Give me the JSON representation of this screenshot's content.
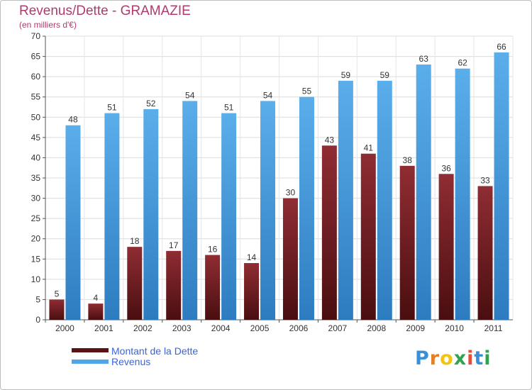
{
  "chart_data": {
    "type": "bar",
    "title": "Revenus/Dette - GRAMAZIE",
    "subtitle": "(en milliers d'€)",
    "categories": [
      "2000",
      "2001",
      "2002",
      "2003",
      "2004",
      "2005",
      "2006",
      "2007",
      "2008",
      "2009",
      "2010",
      "2011"
    ],
    "series": [
      {
        "name": "Montant de la Dette",
        "values": [
          5,
          4,
          18,
          17,
          16,
          14,
          30,
          43,
          41,
          38,
          36,
          33
        ],
        "color": "#7a1f24"
      },
      {
        "name": "Revenus",
        "values": [
          48,
          51,
          52,
          54,
          51,
          54,
          55,
          59,
          59,
          63,
          62,
          66
        ],
        "color": "#4ea6e8"
      }
    ],
    "ylim": [
      0,
      70
    ],
    "yticks": [
      0,
      5,
      10,
      15,
      20,
      25,
      30,
      35,
      40,
      45,
      50,
      55,
      60,
      65,
      70
    ],
    "grid": true,
    "legend": "bottom-left"
  },
  "logo": {
    "text": "Proxiti"
  }
}
